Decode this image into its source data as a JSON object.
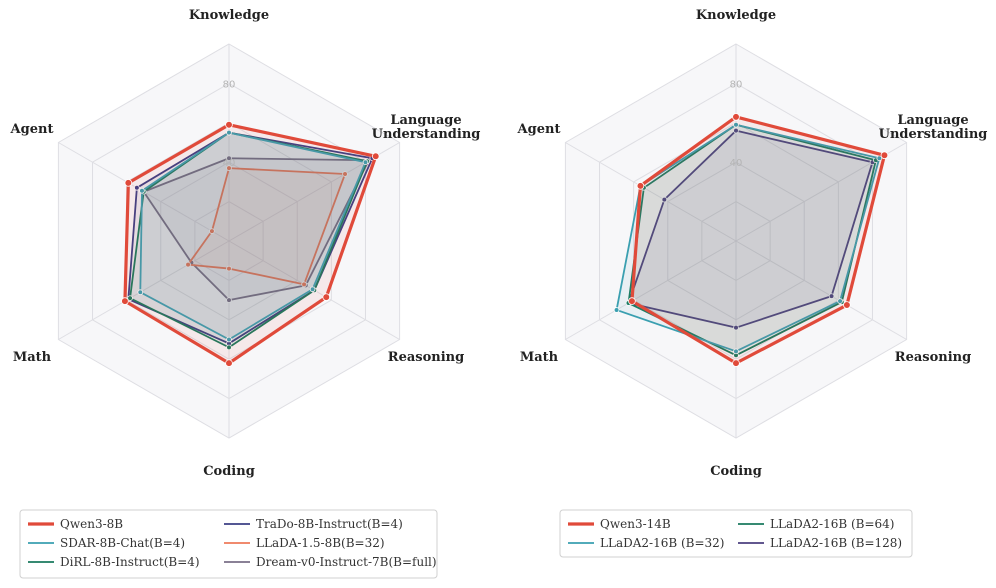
{
  "chart_data": [
    {
      "type": "radar",
      "axes": [
        "Knowledge",
        "Language\nUnderstanding",
        "Reasoning",
        "Coding",
        "Math",
        "Agent"
      ],
      "rlim": [
        0,
        100
      ],
      "ticks": [
        40,
        80
      ],
      "series": [
        {
          "name": "Qwen3-8B",
          "color": "#e04a3a",
          "values": [
            59,
            86,
            57,
            62,
            61,
            59
          ]
        },
        {
          "name": "SDAR-8B-Chat(B=4)",
          "color": "#3a9fb0",
          "values": [
            55,
            80,
            49,
            50,
            52,
            51
          ]
        },
        {
          "name": "DiRL-8B-Instruct(B=4)",
          "color": "#1a7a5e",
          "values": [
            55,
            81,
            50,
            54,
            58,
            50
          ]
        },
        {
          "name": "TraDo-8B-Instruct(B=4)",
          "color": "#3b3f85",
          "values": [
            55,
            84,
            50,
            52,
            59,
            54
          ]
        },
        {
          "name": "LLaDA-1.5-8B(B=32)",
          "color": "#ee7a5a",
          "values": [
            37,
            68,
            44,
            14,
            24,
            10
          ]
        },
        {
          "name": "Dream-v0-Instruct-7B(B=full)",
          "color": "#7a6f87",
          "values": [
            42,
            82,
            45,
            30,
            22,
            50
          ]
        }
      ],
      "legend": {
        "columns": 2,
        "placement": "bottom"
      }
    },
    {
      "type": "radar",
      "axes": [
        "Knowledge",
        "Language\nUnderstanding",
        "Reasoning",
        "Coding",
        "Math",
        "Agent"
      ],
      "rlim": [
        0,
        100
      ],
      "ticks": [
        40,
        80
      ],
      "series": [
        {
          "name": "Qwen3-14B",
          "color": "#e04a3a",
          "values": [
            63,
            87,
            65,
            62,
            61,
            56
          ]
        },
        {
          "name": "LLaDA2-16B (B=32)",
          "color": "#3a9fb0",
          "values": [
            59,
            84,
            61,
            56,
            70,
            56
          ]
        },
        {
          "name": "LLaDA2-16B (B=64)",
          "color": "#1a7a5e",
          "values": [
            59,
            82,
            62,
            58,
            63,
            54
          ]
        },
        {
          "name": "LLaDA2-16B (B=128)",
          "color": "#4b3f7f",
          "values": [
            56,
            80,
            56,
            44,
            63,
            42
          ]
        }
      ],
      "legend": {
        "columns": 2,
        "placement": "bottom"
      }
    }
  ]
}
